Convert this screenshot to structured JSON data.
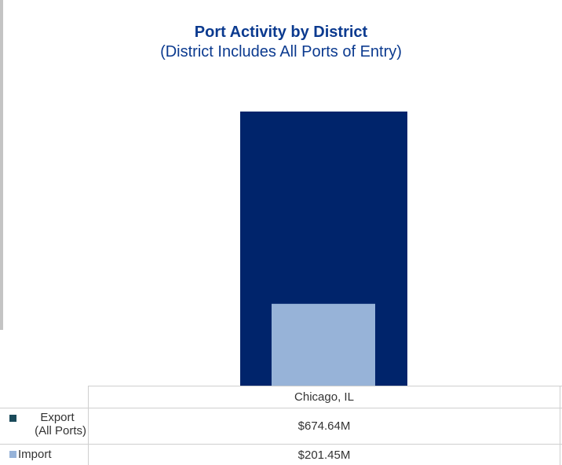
{
  "chart_data": {
    "type": "bar",
    "title": "Port Activity by District",
    "subtitle": "(District Includes All Ports of Entry)",
    "categories": [
      "Chicago, IL"
    ],
    "series": [
      {
        "name": "Export (All Ports)",
        "values": [
          674.64
        ],
        "display": [
          "$674.64M"
        ],
        "color": "#00246b",
        "swatch_color": "#1a4a5a"
      },
      {
        "name": "Import",
        "values": [
          201.45
        ],
        "display": [
          "$201.45M"
        ],
        "color": "#97b3d8",
        "swatch_color": "#97b3d8"
      }
    ],
    "legend": {
      "export_line1": "Export",
      "export_line2": "(All Ports)",
      "import": "Import"
    },
    "ylim": [
      0,
      674.64
    ],
    "grid": false,
    "legend_placement": "data-table-left"
  }
}
